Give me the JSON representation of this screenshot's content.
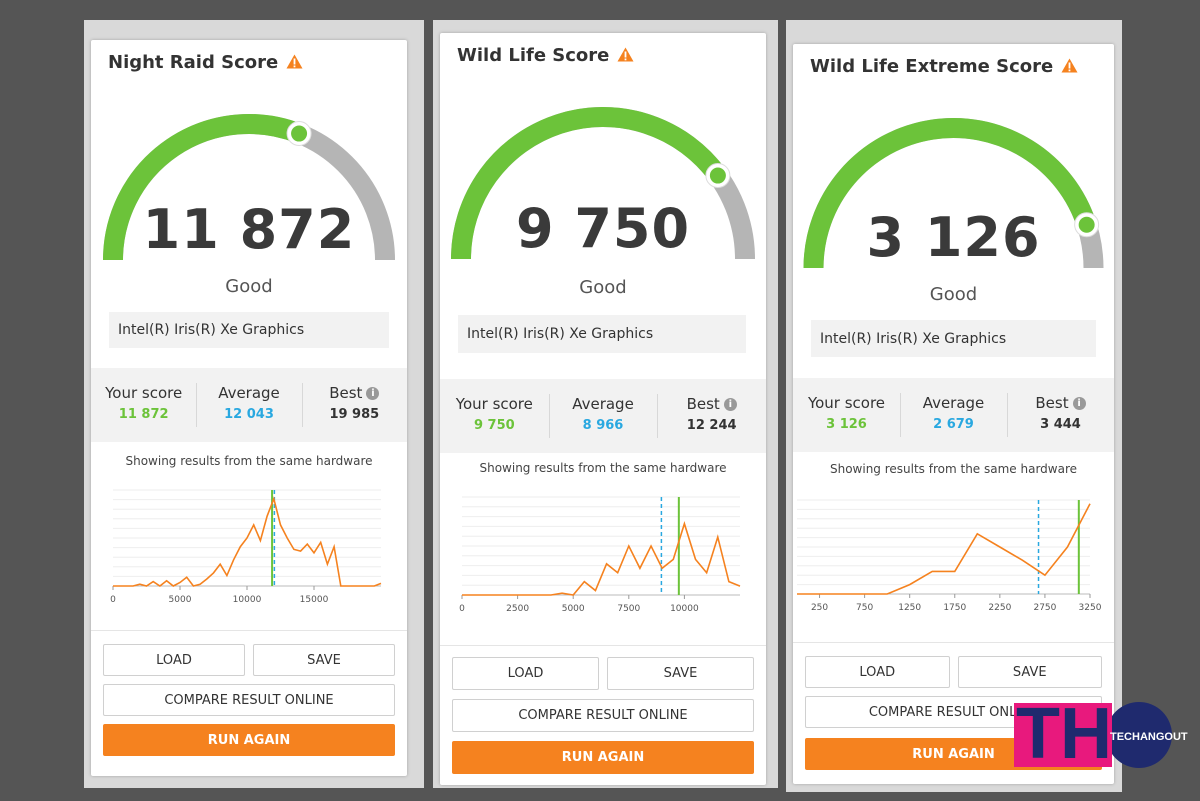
{
  "colors": {
    "green": "#6cc33a",
    "gray_arc": "#b5b5b5",
    "orange": "#f5821f",
    "avg_blue": "#29a8e0",
    "warn": "#f5821f",
    "logo_pink": "#e8197d",
    "logo_navy": "#1f2a6e"
  },
  "cards": [
    {
      "title": "Night Raid Score",
      "score": "11 872",
      "rating": "Good",
      "gauge_fraction": 0.62,
      "gpu": "Intel(R) Iris(R) Xe Graphics",
      "stats": {
        "your_label": "Your score",
        "your": "11 872",
        "avg_label": "Average",
        "avg": "12 043",
        "best_label": "Best",
        "best": "19 985"
      },
      "caption": "Showing results from the same hardware",
      "buttons": {
        "load": "LOAD",
        "save": "SAVE",
        "compare": "COMPARE RESULT ONLINE",
        "run": "RUN AGAIN"
      }
    },
    {
      "title": "Wild Life Score",
      "score": "9 750",
      "rating": "Good",
      "gauge_fraction": 0.8,
      "gpu": "Intel(R) Iris(R) Xe Graphics",
      "stats": {
        "your_label": "Your score",
        "your": "9 750",
        "avg_label": "Average",
        "avg": "8 966",
        "best_label": "Best",
        "best": "12 244"
      },
      "caption": "Showing results from the same hardware",
      "buttons": {
        "load": "LOAD",
        "save": "SAVE",
        "compare": "COMPARE RESULT ONLINE",
        "run": "RUN AGAIN"
      }
    },
    {
      "title": "Wild Life Extreme Score",
      "score": "3 126",
      "rating": "Good",
      "gauge_fraction": 0.9,
      "gpu": "Intel(R) Iris(R) Xe Graphics",
      "stats": {
        "your_label": "Your score",
        "your": "3 126",
        "avg_label": "Average",
        "avg": "2 679",
        "best_label": "Best",
        "best": "3 444"
      },
      "caption": "Showing results from the same hardware",
      "buttons": {
        "load": "LOAD",
        "save": "SAVE",
        "compare": "COMPARE RESULT ONLINE",
        "run": "RUN AGAIN"
      }
    }
  ],
  "chart_data": [
    {
      "type": "line",
      "x": [
        0,
        500,
        1000,
        1500,
        2000,
        2500,
        3000,
        3500,
        4000,
        4500,
        5000,
        5500,
        6000,
        6500,
        7000,
        7500,
        8000,
        8500,
        9000,
        9500,
        10000,
        10500,
        11000,
        11500,
        12000,
        12500,
        13000,
        13500,
        14000,
        14500,
        15000,
        15500,
        16000,
        16500,
        17000,
        17500,
        18000,
        18500,
        19000,
        19500,
        20000
      ],
      "y": [
        0,
        0,
        0,
        0,
        0.2,
        0,
        0.5,
        0,
        0.6,
        0,
        0.4,
        1,
        0,
        0.2,
        0.8,
        1.5,
        2.5,
        1.2,
        3,
        4.5,
        5.5,
        7,
        5.2,
        8,
        10,
        7,
        5.5,
        4.2,
        4,
        4.8,
        3.8,
        5,
        2.5,
        4.5,
        0,
        0,
        0,
        0,
        0,
        0,
        0.3
      ],
      "xticks": [
        "0",
        "5000",
        "10000",
        "15000"
      ],
      "xtick_values": [
        0,
        5000,
        10000,
        15000
      ],
      "xlim": [
        0,
        20000
      ],
      "ylim": [
        0,
        11
      ],
      "your_score": 11872,
      "average": 12043,
      "grid": true
    },
    {
      "type": "line",
      "x": [
        0,
        500,
        1000,
        1500,
        2000,
        2500,
        3000,
        3500,
        4000,
        4500,
        5000,
        5500,
        6000,
        6500,
        7000,
        7500,
        8000,
        8500,
        9000,
        9500,
        10000,
        10500,
        11000,
        11500,
        12000,
        12500
      ],
      "y": [
        0,
        0,
        0,
        0,
        0,
        0,
        0,
        0,
        0,
        0.2,
        0,
        1.5,
        0.5,
        3.5,
        2.5,
        5.5,
        3,
        5.5,
        3,
        4,
        8,
        4,
        2.5,
        6.5,
        1.5,
        1
      ],
      "xticks": [
        "0",
        "2500",
        "5000",
        "7500",
        "10000"
      ],
      "xtick_values": [
        0,
        2500,
        5000,
        7500,
        10000
      ],
      "xlim": [
        0,
        12500
      ],
      "ylim": [
        0,
        11
      ],
      "your_score": 9750,
      "average": 8966,
      "grid": true
    },
    {
      "type": "line",
      "x": [
        0,
        250,
        500,
        750,
        1000,
        1250,
        1500,
        1750,
        2000,
        2250,
        2500,
        2750,
        3000,
        3250
      ],
      "y": [
        0,
        0,
        0,
        0,
        0,
        0.5,
        1.2,
        1.2,
        3.2,
        2.5,
        1.8,
        1.0,
        2.5,
        4.8
      ],
      "xticks": [
        "250",
        "750",
        "1250",
        "1750",
        "2250",
        "2750",
        "3250"
      ],
      "xtick_values": [
        250,
        750,
        1250,
        1750,
        2250,
        2750,
        3250
      ],
      "xlim": [
        0,
        3250
      ],
      "ylim": [
        0,
        5
      ],
      "your_score": 3126,
      "average": 2679,
      "grid": true
    }
  ],
  "watermark": {
    "mark": "TH",
    "name": "TECHANGOUT"
  }
}
